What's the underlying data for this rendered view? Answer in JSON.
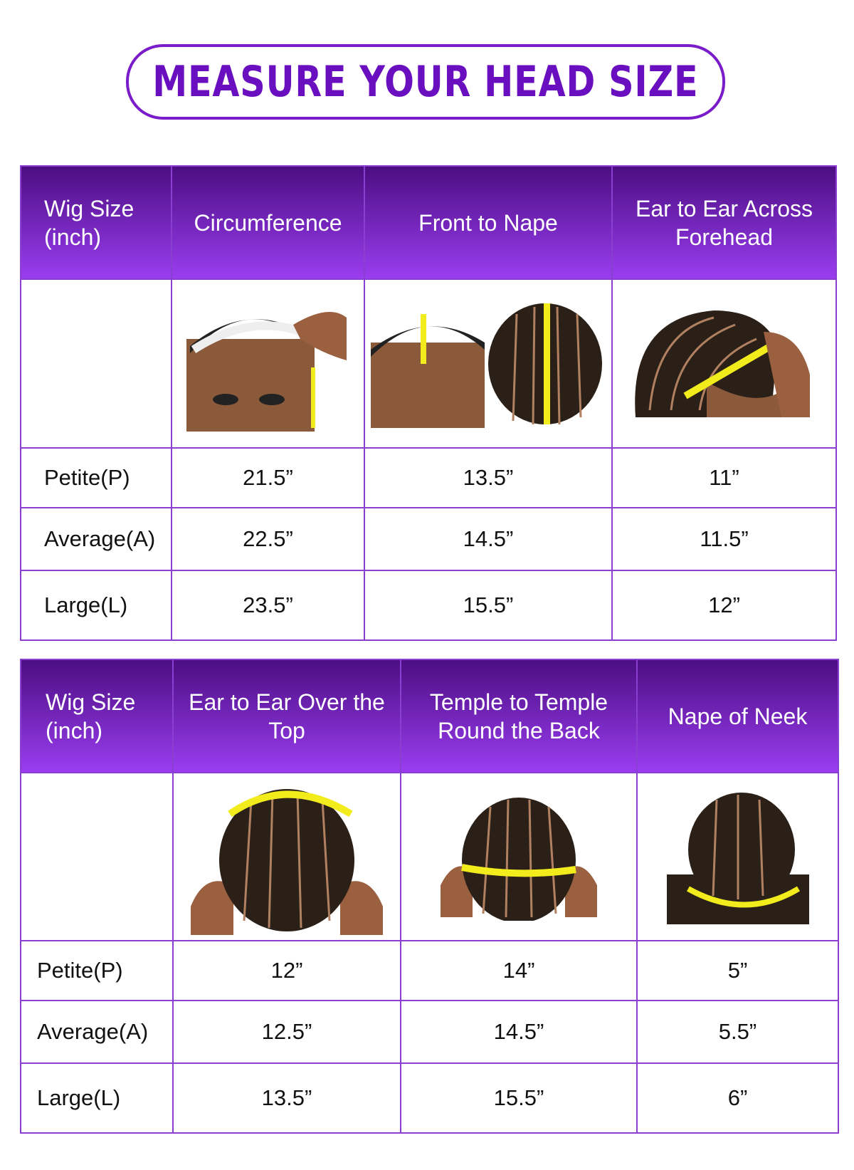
{
  "title": "MEASURE YOUR HEAD SIZE",
  "colors": {
    "accent": "#6a0fc0",
    "header_top": "#4c0e82",
    "header_bottom": "#9a3df0",
    "tape": "#f2ec1c"
  },
  "table1": {
    "headers": [
      "Wig Size (inch)",
      "Circumference",
      "Front to Nape",
      "Ear to Ear Across Forehead"
    ],
    "images": [
      "circumference-photo",
      "front-to-nape-photo",
      "ear-to-ear-forehead-photo"
    ],
    "rows": [
      {
        "size": "Petite(P)",
        "values": [
          "21.5”",
          "13.5”",
          "11”"
        ]
      },
      {
        "size": "Average(A)",
        "values": [
          "22.5”",
          "14.5”",
          "11.5”"
        ]
      },
      {
        "size": "Large(L)",
        "values": [
          "23.5”",
          "15.5”",
          "12”"
        ]
      }
    ]
  },
  "table2": {
    "headers": [
      "Wig Size (inch)",
      "Ear to Ear Over the Top",
      "Temple to Temple Round the Back",
      "Nape of Neek"
    ],
    "images": [
      "ear-to-ear-top-photo",
      "temple-to-temple-photo",
      "nape-photo"
    ],
    "rows": [
      {
        "size": "Petite(P)",
        "values": [
          "12”",
          "14”",
          "5”"
        ]
      },
      {
        "size": "Average(A)",
        "values": [
          "12.5”",
          "14.5”",
          "5.5”"
        ]
      },
      {
        "size": "Large(L)",
        "values": [
          "13.5”",
          "15.5”",
          "6”"
        ]
      }
    ]
  }
}
